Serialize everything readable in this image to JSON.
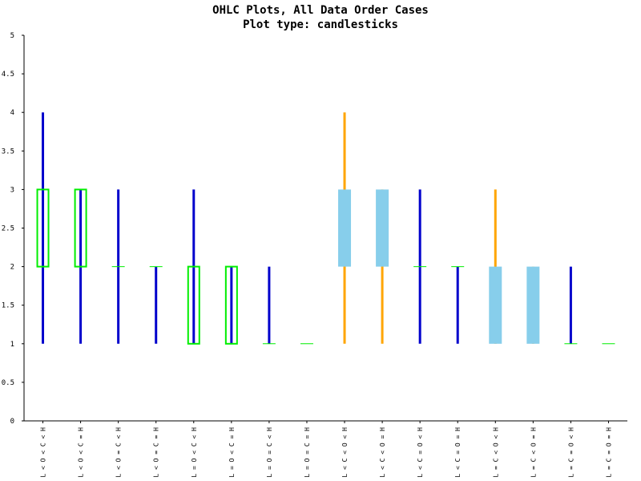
{
  "chart_data": {
    "type": "candlestick",
    "title": "OHLC Plots, All Data Order Cases",
    "subtitle": "Plot type: candlesticks",
    "xlabel": "",
    "ylabel": "",
    "ylim": [
      0,
      5
    ],
    "yticks": [
      "0",
      "0.5",
      "1",
      "1.5",
      "2",
      "2.5",
      "3",
      "3.5",
      "4",
      "4.5",
      "5"
    ],
    "categories": [
      "L < O < C < H",
      "L < O < C = H",
      "L < O = C < H",
      "L < O = C = H",
      "L = O < C < H",
      "L = O < C = H",
      "L = O = C < H",
      "L = O = C = H",
      "L < C < O < H",
      "L < C < O = H",
      "L < C = O < H",
      "L < C = O = H",
      "L = C < O < H",
      "L = C < O = H",
      "L = C = O < H",
      "L = C = O = H"
    ],
    "ohlc": [
      {
        "open": 2,
        "high": 4,
        "low": 1,
        "close": 3
      },
      {
        "open": 2,
        "high": 3,
        "low": 1,
        "close": 3
      },
      {
        "open": 2,
        "high": 3,
        "low": 1,
        "close": 2
      },
      {
        "open": 2,
        "high": 2,
        "low": 1,
        "close": 2
      },
      {
        "open": 1,
        "high": 3,
        "low": 1,
        "close": 2
      },
      {
        "open": 1,
        "high": 2,
        "low": 1,
        "close": 2
      },
      {
        "open": 1,
        "high": 2,
        "low": 1,
        "close": 1
      },
      {
        "open": 1,
        "high": 1,
        "low": 1,
        "close": 1
      },
      {
        "open": 3,
        "high": 4,
        "low": 1,
        "close": 2
      },
      {
        "open": 3,
        "high": 3,
        "low": 1,
        "close": 2
      },
      {
        "open": 2,
        "high": 3,
        "low": 1,
        "close": 2
      },
      {
        "open": 2,
        "high": 2,
        "low": 1,
        "close": 2
      },
      {
        "open": 2,
        "high": 3,
        "low": 1,
        "close": 1
      },
      {
        "open": 2,
        "high": 2,
        "low": 1,
        "close": 1
      },
      {
        "open": 1,
        "high": 2,
        "low": 1,
        "close": 1
      },
      {
        "open": 1,
        "high": 1,
        "low": 1,
        "close": 1
      }
    ],
    "colors": {
      "wick_up": "#0000cc",
      "wick_down": "#ffa500",
      "body_up_outline": "#00ee00",
      "body_down_fill": "#87ceeb",
      "axis": "#000000"
    },
    "grid": false
  }
}
